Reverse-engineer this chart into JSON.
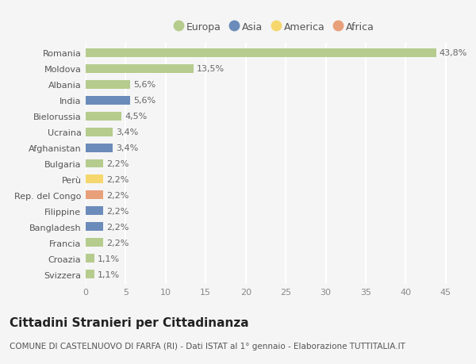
{
  "countries": [
    "Romania",
    "Moldova",
    "Albania",
    "India",
    "Bielorussia",
    "Ucraina",
    "Afghanistan",
    "Bulgaria",
    "Perù",
    "Rep. del Congo",
    "Filippine",
    "Bangladesh",
    "Francia",
    "Croazia",
    "Svizzera"
  ],
  "values": [
    43.8,
    13.5,
    5.6,
    5.6,
    4.5,
    3.4,
    3.4,
    2.2,
    2.2,
    2.2,
    2.2,
    2.2,
    2.2,
    1.1,
    1.1
  ],
  "labels": [
    "43,8%",
    "13,5%",
    "5,6%",
    "5,6%",
    "4,5%",
    "3,4%",
    "3,4%",
    "2,2%",
    "2,2%",
    "2,2%",
    "2,2%",
    "2,2%",
    "2,2%",
    "1,1%",
    "1,1%"
  ],
  "continents": [
    "Europa",
    "Europa",
    "Europa",
    "Asia",
    "Europa",
    "Europa",
    "Asia",
    "Europa",
    "America",
    "Africa",
    "Asia",
    "Asia",
    "Europa",
    "Europa",
    "Europa"
  ],
  "continent_colors": {
    "Europa": "#b5cc8e",
    "Asia": "#6b8cba",
    "America": "#f5d76e",
    "Africa": "#e8a07a"
  },
  "legend_order": [
    "Europa",
    "Asia",
    "America",
    "Africa"
  ],
  "title": "Cittadini Stranieri per Cittadinanza",
  "subtitle": "COMUNE DI CASTELNUOVO DI FARFA (RI) - Dati ISTAT al 1° gennaio - Elaborazione TUTTITALIA.IT",
  "xlim": [
    0,
    47
  ],
  "xticks": [
    0,
    5,
    10,
    15,
    20,
    25,
    30,
    35,
    40,
    45
  ],
  "background_color": "#f5f5f5",
  "grid_color": "#ffffff",
  "bar_height": 0.55,
  "title_fontsize": 11,
  "subtitle_fontsize": 7.5,
  "tick_fontsize": 8,
  "label_fontsize": 8,
  "legend_fontsize": 9
}
